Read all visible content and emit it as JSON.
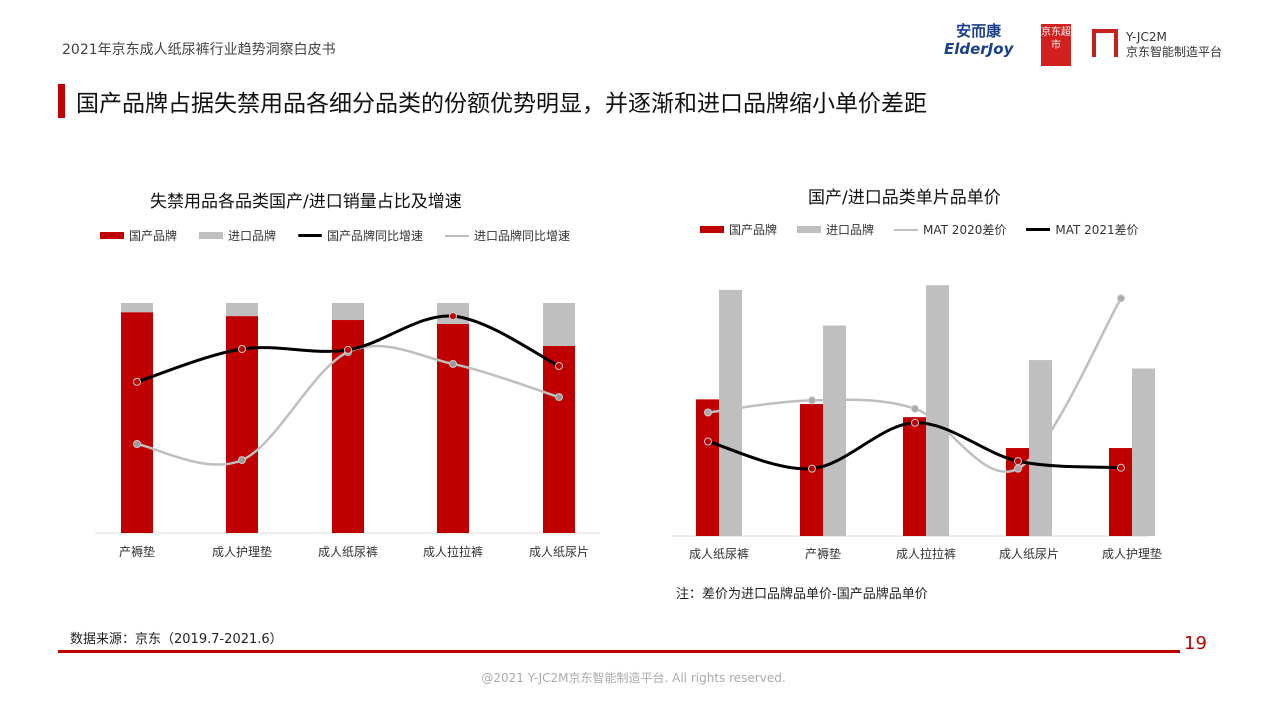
{
  "header": {
    "subtitle": "2021年京东成人纸尿裤行业趋势洞察白皮书",
    "title": "国产品牌占据失禁用品各细分品类的份额优势明显，并逐渐和进口品牌缩小单价差距",
    "logos": {
      "elderjoy_cn": "安而康",
      "elderjoy_en": "ElderJoy",
      "jd_market": "京东超市",
      "yjc2m": "Y-JC2M",
      "yjc2m_sub": "京东智能制造平台"
    }
  },
  "colors": {
    "domestic": "#c00000",
    "import": "#bfbfbf",
    "line_dark": "#000000",
    "line_light": "#bfbfbf"
  },
  "chart_data": [
    {
      "type": "bar",
      "stacked": true,
      "title": "失禁用品各品类国产/进口销量占比及增速",
      "categories": [
        "产褥垫",
        "成人护理垫",
        "成人纸尿裤",
        "成人拉拉裤",
        "成人纸尿片"
      ],
      "legend": [
        "国产品牌",
        "进口品牌",
        "国产品牌同比增速",
        "进口品牌同比增速"
      ],
      "legend_position": "top",
      "grid": false,
      "ylim": [
        0,
        100
      ],
      "series": [
        {
          "name": "国产品牌",
          "kind": "bar",
          "values": [
            96,
            94.3,
            92.6,
            90.9,
            81.3
          ]
        },
        {
          "name": "进口品牌",
          "kind": "bar",
          "values": [
            4,
            5.7,
            7.4,
            9.1,
            18.7
          ]
        },
        {
          "name": "国产品牌同比增速",
          "kind": "line",
          "values": [
            65.7,
            80,
            79.6,
            94.3,
            72.6
          ]
        },
        {
          "name": "进口品牌同比增速",
          "kind": "line",
          "values": [
            38.7,
            31.7,
            78.7,
            73.5,
            59.1
          ]
        }
      ]
    },
    {
      "type": "bar",
      "title": "国产/进口品类单片品单价",
      "categories": [
        "成人纸尿裤",
        "产褥垫",
        "成人拉拉裤",
        "成人纸尿片",
        "成人护理垫"
      ],
      "legend": [
        "国产品牌",
        "进口品牌",
        "MAT 2020差价",
        "MAT 2021差价"
      ],
      "legend_position": "top",
      "grid": false,
      "ylim": [
        0,
        280
      ],
      "series": [
        {
          "name": "国产品牌",
          "kind": "bar",
          "values": [
            146,
            141,
            127,
            94,
            94
          ]
        },
        {
          "name": "进口品牌",
          "kind": "bar",
          "values": [
            263,
            225,
            268,
            188,
            179
          ]
        },
        {
          "name": "MAT 2020差价",
          "kind": "line",
          "values": [
            132,
            145,
            136,
            72,
            254
          ]
        },
        {
          "name": "MAT 2021差价",
          "kind": "line",
          "values": [
            101,
            72,
            121,
            80,
            73
          ]
        }
      ],
      "note": "注：差价为进口品牌品单价-国产品牌品单价"
    }
  ],
  "footer": {
    "source": "数据来源：京东（2019.7-2021.6）",
    "page": "19",
    "copyright": "@2021 Y-JC2M京东智能制造平台. All rights reserved."
  }
}
